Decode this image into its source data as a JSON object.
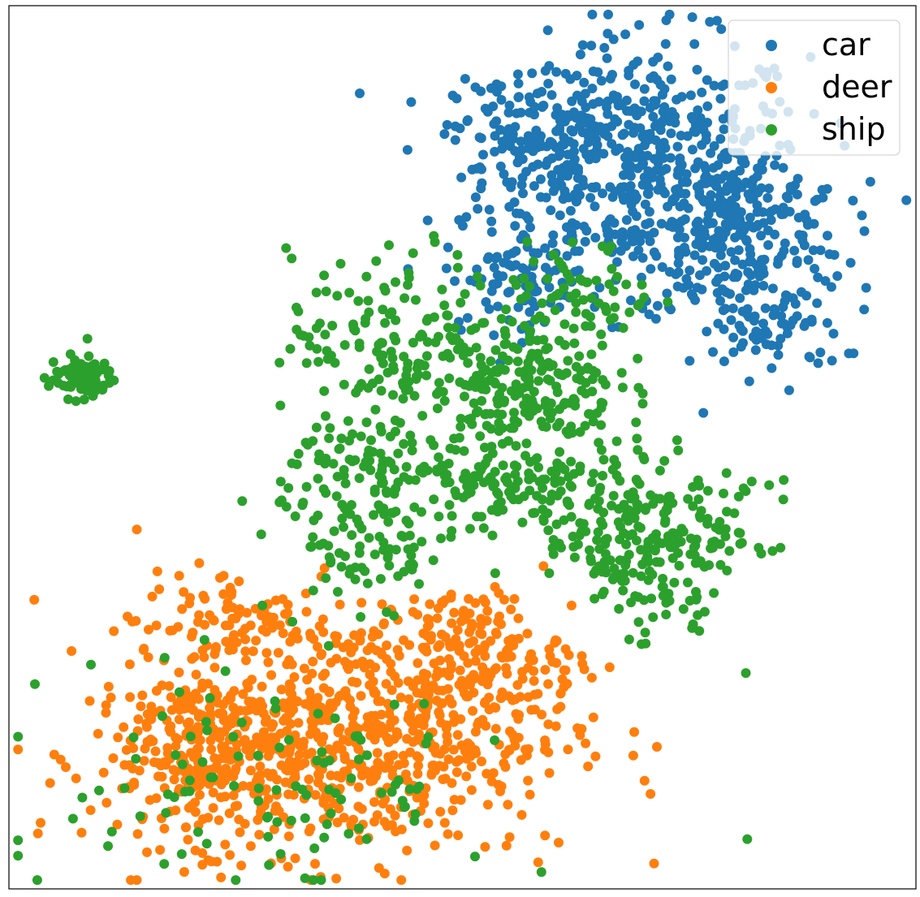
{
  "chart_data": {
    "type": "scatter",
    "title": "",
    "xlabel": "",
    "ylabel": "",
    "ticks_visible": false,
    "grid": false,
    "legend_position": "top-right",
    "xlim": [
      0,
      100
    ],
    "ylim": [
      0,
      100
    ],
    "series": [
      {
        "name": "car",
        "color": "#1f77b4",
        "clusters": [
          {
            "cx": 70,
            "cy": 82,
            "sx": 9,
            "sy": 7,
            "n": 520
          },
          {
            "cx": 80,
            "cy": 74,
            "sx": 6,
            "sy": 5,
            "n": 230
          },
          {
            "cx": 57,
            "cy": 85,
            "sx": 4,
            "sy": 3.5,
            "n": 120
          },
          {
            "cx": 84,
            "cy": 63,
            "sx": 4,
            "sy": 2.5,
            "n": 70
          },
          {
            "cx": 56,
            "cy": 69,
            "sx": 4,
            "sy": 3,
            "n": 80
          }
        ]
      },
      {
        "name": "deer",
        "color": "#ff7f0e",
        "clusters": [
          {
            "cx": 23,
            "cy": 15,
            "sx": 7,
            "sy": 5,
            "n": 330
          },
          {
            "cx": 40,
            "cy": 18,
            "sx": 11,
            "sy": 7,
            "n": 620
          },
          {
            "cx": 51,
            "cy": 27,
            "sx": 5,
            "sy": 3.5,
            "n": 140
          },
          {
            "cx": 24,
            "cy": 30,
            "sx": 5,
            "sy": 3,
            "n": 90
          }
        ]
      },
      {
        "name": "ship",
        "color": "#2ca02c",
        "clusters": [
          {
            "cx": 8,
            "cy": 58,
            "sx": 1.8,
            "sy": 1.2,
            "n": 90
          },
          {
            "cx": 43,
            "cy": 62,
            "sx": 6,
            "sy": 5,
            "n": 160
          },
          {
            "cx": 57,
            "cy": 57,
            "sx": 5,
            "sy": 3.5,
            "n": 190
          },
          {
            "cx": 63,
            "cy": 67,
            "sx": 4,
            "sy": 3,
            "n": 70
          },
          {
            "cx": 40,
            "cy": 47,
            "sx": 5,
            "sy": 3.5,
            "n": 120
          },
          {
            "cx": 56,
            "cy": 45,
            "sx": 5,
            "sy": 3,
            "n": 120
          },
          {
            "cx": 67,
            "cy": 44,
            "sx": 5,
            "sy": 3.5,
            "n": 100
          },
          {
            "cx": 76,
            "cy": 40,
            "sx": 4,
            "sy": 3,
            "n": 80
          },
          {
            "cx": 40,
            "cy": 38,
            "sx": 5,
            "sy": 3,
            "n": 70
          },
          {
            "cx": 67,
            "cy": 37,
            "sx": 3,
            "sy": 2,
            "n": 40
          },
          {
            "cx": 71,
            "cy": 32,
            "sx": 4,
            "sy": 2.5,
            "n": 40
          },
          {
            "cx": 30,
            "cy": 12,
            "sx": 12,
            "sy": 7,
            "n": 110
          }
        ]
      }
    ]
  },
  "legend": {
    "entries": [
      {
        "label": "car",
        "color": "#1f77b4"
      },
      {
        "label": "deer",
        "color": "#ff7f0e"
      },
      {
        "label": "ship",
        "color": "#2ca02c"
      }
    ]
  }
}
